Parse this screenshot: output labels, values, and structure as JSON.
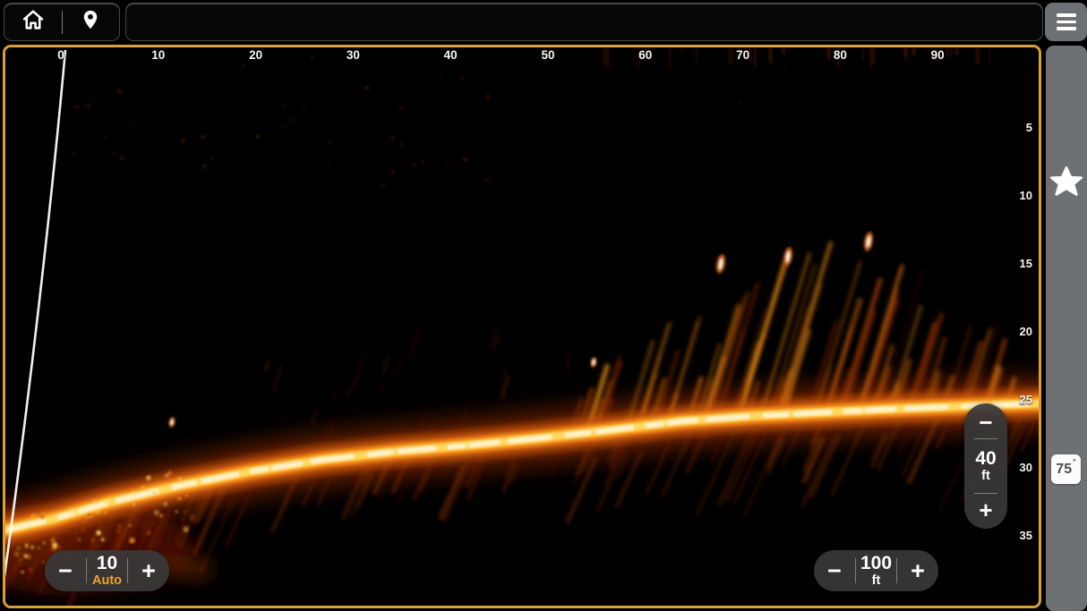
{
  "topbar": {
    "home": {
      "icon": "home"
    },
    "waypoint": {
      "icon": "map-pin"
    },
    "status_text": "",
    "menu": {
      "icon": "menu"
    }
  },
  "sonar": {
    "range_labels": [
      "0",
      "10",
      "20",
      "30",
      "40",
      "50",
      "60",
      "70",
      "80",
      "90"
    ],
    "depth_labels": [
      "5",
      "10",
      "15",
      "20",
      "25",
      "30",
      "35"
    ],
    "border_color": "#dda039",
    "palette": {
      "hot": "#fff3cf",
      "core": "#ffd75e",
      "bright": "#ff9e1c",
      "mid": "#cf5a08",
      "glow": "#7a2500",
      "dim": "#5a1602",
      "background": "#000000"
    }
  },
  "controls": {
    "glyphs": {
      "decrease": "−",
      "increase": "+"
    },
    "sensitivity": {
      "value": "10",
      "mode": "Auto"
    },
    "range": {
      "value": "100",
      "unit": "ft"
    },
    "depth_range": {
      "value": "40",
      "unit": "ft"
    }
  },
  "sidebar": {
    "favorite_icon": "star",
    "temperature": {
      "value": "75",
      "unit": "°"
    }
  }
}
